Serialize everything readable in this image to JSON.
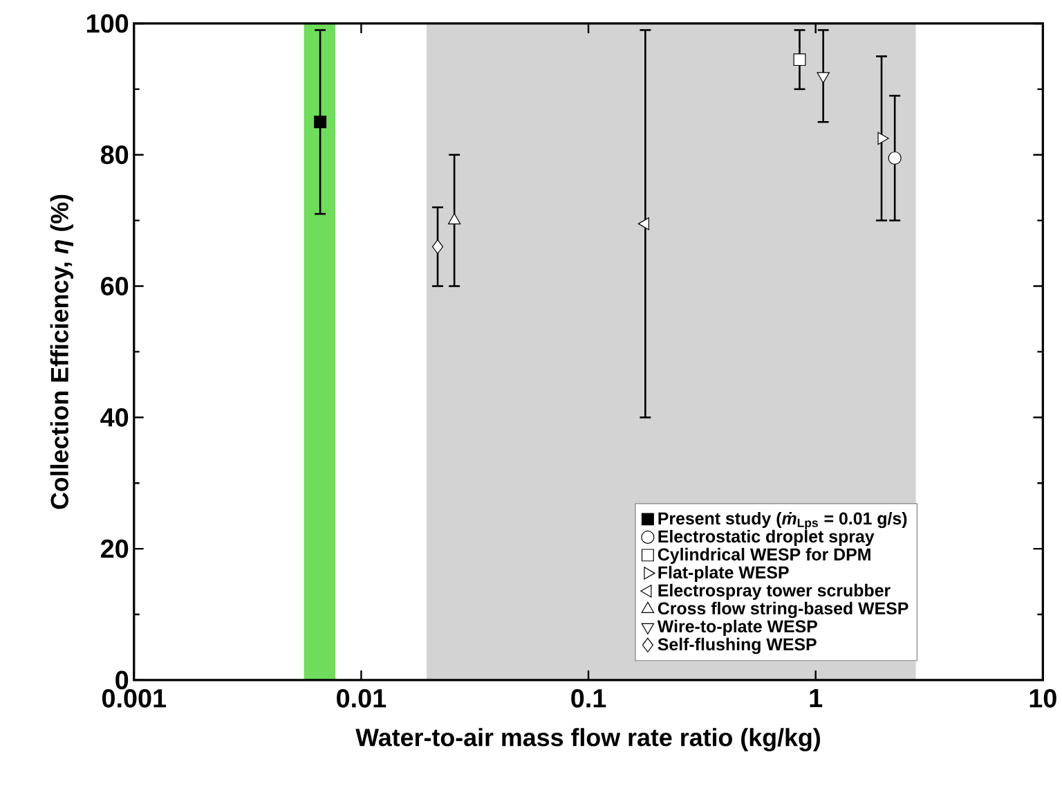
{
  "chart_data": {
    "type": "scatter",
    "xlabel": "Water-to-air mass flow rate ratio (kg/kg)",
    "ylabel": "Collection Efficiency, *η* (%)",
    "log": "x",
    "xlim": [
      0.001,
      10
    ],
    "xticks": [
      0.001,
      0.01,
      0.1,
      1,
      10
    ],
    "ylim": [
      0,
      100
    ],
    "yticks": [
      0,
      20,
      40,
      60,
      80,
      100
    ],
    "legend": "bottom right",
    "bands": [
      {
        "axis": "x",
        "from": 0.0056,
        "to": 0.0077,
        "color": "#70dc5c"
      },
      {
        "axis": "x",
        "from": 0.0194,
        "to": 2.76,
        "color": "#d3d3d3"
      }
    ],
    "series": [
      {
        "name": "Present study (*ṁ*$_{Lps}$ = 0.01 g/s)",
        "color": "#000000",
        "marker": "square",
        "x": [
          0.0066
        ],
        "values": [
          85
        ],
        "errors": [
          [
            71,
            99
          ]
        ]
      },
      {
        "name": "Electrostatic droplet spray",
        "color": "#ffffff",
        "marker": "circle",
        "x": [
          2.23
        ],
        "values": [
          79.5
        ],
        "errors": [
          [
            70,
            89
          ]
        ]
      },
      {
        "name": "Cylindrical WESP for DPM",
        "color": "#ffffff",
        "marker": "square",
        "x": [
          0.85
        ],
        "values": [
          94.5
        ],
        "errors": [
          [
            90,
            99
          ]
        ]
      },
      {
        "name": "Flat-plate WESP",
        "color": "#ffffff",
        "marker": "triangle-right",
        "x": [
          1.95
        ],
        "values": [
          82.5
        ],
        "errors": [
          [
            70,
            95
          ]
        ]
      },
      {
        "name": "Electrospray tower scrubber",
        "color": "#ffffff",
        "marker": "triangle-left",
        "x": [
          0.178
        ],
        "values": [
          69.5
        ],
        "errors": [
          [
            40,
            99
          ]
        ]
      },
      {
        "name": "Cross flow string-based WESP",
        "color": "#ffffff",
        "marker": "triangle",
        "x": [
          0.0257
        ],
        "values": [
          70
        ],
        "errors": [
          [
            60,
            80
          ]
        ]
      },
      {
        "name": "Wire-to-plate WESP",
        "color": "#ffffff",
        "marker": "triangle-down",
        "x": [
          1.08
        ],
        "values": [
          92
        ],
        "errors": [
          [
            85,
            99
          ]
        ]
      },
      {
        "name": "Self-flushing WESP",
        "color": "#ffffff",
        "marker": "diamond",
        "x": [
          0.0217
        ],
        "values": [
          66
        ],
        "errors": [
          [
            60,
            72
          ]
        ]
      }
    ]
  }
}
